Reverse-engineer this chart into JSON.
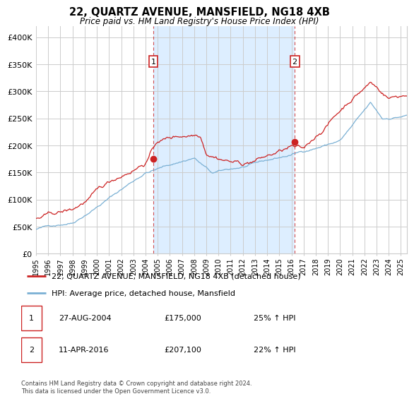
{
  "title": "22, QUARTZ AVENUE, MANSFIELD, NG18 4XB",
  "subtitle": "Price paid vs. HM Land Registry's House Price Index (HPI)",
  "xlim_start": 1995.0,
  "xlim_end": 2025.5,
  "ylim": [
    0,
    420000
  ],
  "yticks": [
    0,
    50000,
    100000,
    150000,
    200000,
    250000,
    300000,
    350000,
    400000
  ],
  "ytick_labels": [
    "£0",
    "£50K",
    "£100K",
    "£150K",
    "£200K",
    "£250K",
    "£300K",
    "£350K",
    "£400K"
  ],
  "sale1_date": 2004.65,
  "sale1_price": 175000,
  "sale1_label": "1",
  "sale1_info": "27-AUG-2004",
  "sale1_amount": "£175,000",
  "sale1_hpi": "25% ↑ HPI",
  "sale2_date": 2016.27,
  "sale2_price": 207100,
  "sale2_label": "2",
  "sale2_info": "11-APR-2016",
  "sale2_amount": "£207,100",
  "sale2_hpi": "22% ↑ HPI",
  "legend_line1": "22, QUARTZ AVENUE, MANSFIELD, NG18 4XB (detached house)",
  "legend_line2": "HPI: Average price, detached house, Mansfield",
  "footer": "Contains HM Land Registry data © Crown copyright and database right 2024.\nThis data is licensed under the Open Government Licence v3.0.",
  "line_color_red": "#cc2222",
  "line_color_blue": "#7ab0d4",
  "shade_color": "#ddeeff",
  "background_color": "#ffffff",
  "grid_color": "#cccccc"
}
